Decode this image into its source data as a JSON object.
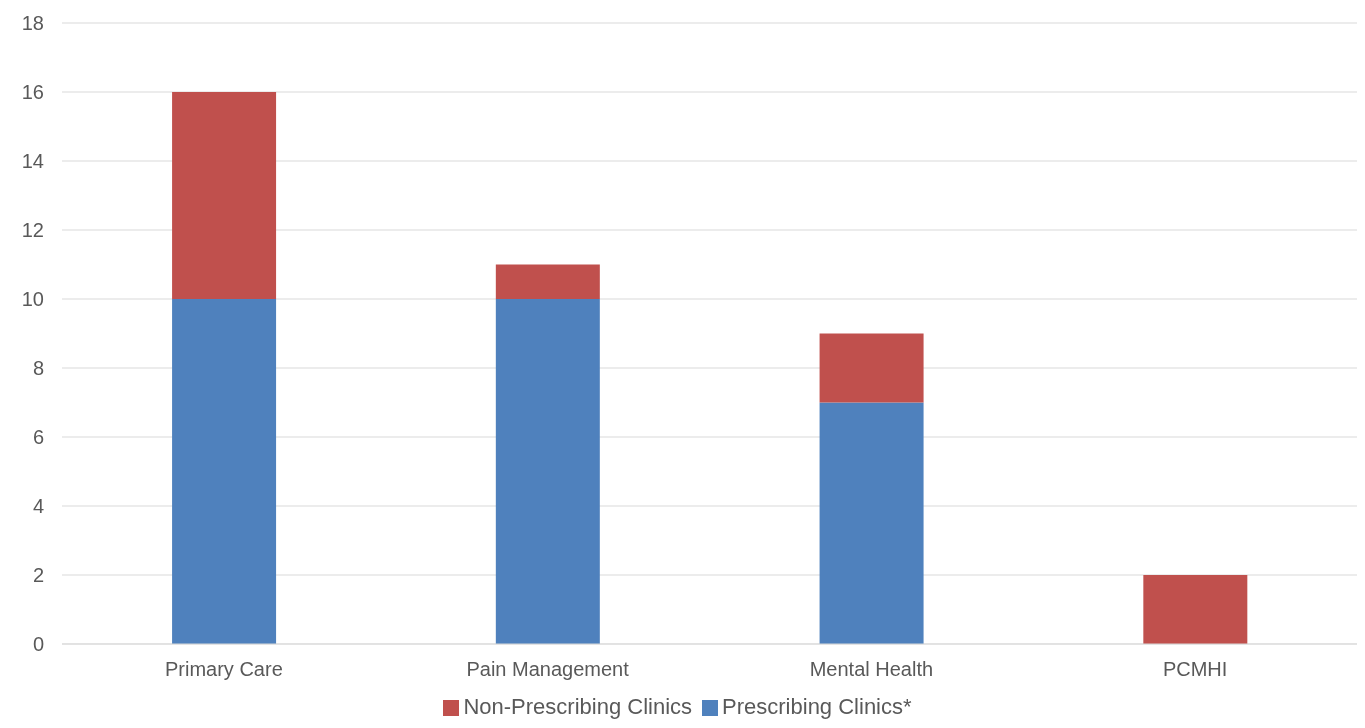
{
  "chart_data": {
    "type": "bar",
    "stacked": true,
    "categories": [
      "Primary Care",
      "Pain Management",
      "Mental Health",
      "PCMHI"
    ],
    "series": [
      {
        "name": "Prescribing Clinics*",
        "color": "#4f81bd",
        "values": [
          10,
          10,
          7,
          0
        ]
      },
      {
        "name": "Non-Prescribing Clinics",
        "color": "#c0504d",
        "values": [
          6,
          1,
          2,
          2
        ]
      }
    ],
    "ylim": [
      0,
      18
    ],
    "yticks": [
      0,
      2,
      4,
      6,
      8,
      10,
      12,
      14,
      16,
      18
    ],
    "grid": "y",
    "legend": "bottom"
  }
}
